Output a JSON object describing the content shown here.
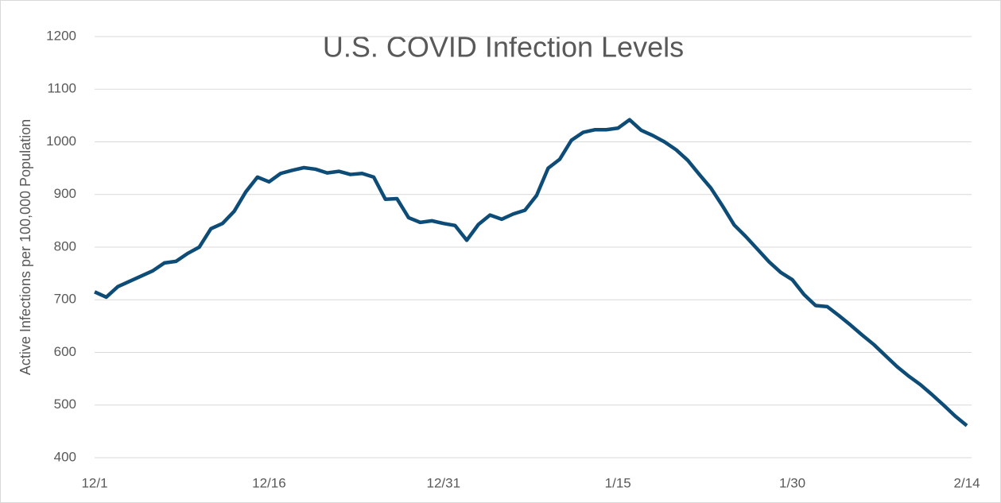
{
  "chart_data": {
    "type": "line",
    "title": "U.S. COVID Infection Levels",
    "y_label": "Active Infections per 100,000 Population",
    "categories": [
      "12/1",
      null,
      null,
      null,
      null,
      null,
      null,
      null,
      null,
      null,
      null,
      null,
      null,
      null,
      null,
      "12/16",
      null,
      null,
      null,
      null,
      null,
      null,
      null,
      null,
      null,
      null,
      null,
      null,
      null,
      null,
      "12/31",
      null,
      null,
      null,
      null,
      null,
      null,
      null,
      null,
      null,
      null,
      null,
      null,
      null,
      null,
      "1/15",
      null,
      null,
      null,
      null,
      null,
      null,
      null,
      null,
      null,
      null,
      null,
      null,
      null,
      null,
      "1/30",
      null,
      null,
      null,
      null,
      null,
      null,
      null,
      null,
      null,
      null,
      null,
      null,
      null,
      null,
      "2/14"
    ],
    "series": [
      {
        "color": "#0e4c78",
        "values": [
          715,
          705,
          725,
          735,
          745,
          755,
          770,
          773,
          788,
          800,
          835,
          845,
          868,
          905,
          933,
          924,
          940,
          946,
          951,
          948,
          941,
          944,
          938,
          940,
          933,
          891,
          892,
          856,
          847,
          850,
          845,
          841,
          813,
          843,
          861,
          853,
          863,
          870,
          898,
          950,
          967,
          1003,
          1018,
          1023,
          1023,
          1026,
          1042,
          1022,
          1012,
          1000,
          985,
          965,
          938,
          912,
          878,
          842,
          820,
          796,
          772,
          752,
          738,
          710,
          689,
          687,
          670,
          652,
          633,
          615,
          594,
          573,
          555,
          539,
          520,
          500,
          479,
          461
        ]
      }
    ],
    "ylim": [
      400,
      1200
    ],
    "yticks": [
      400,
      500,
      600,
      700,
      800,
      900,
      1000,
      1100,
      1200
    ],
    "grid": true
  }
}
